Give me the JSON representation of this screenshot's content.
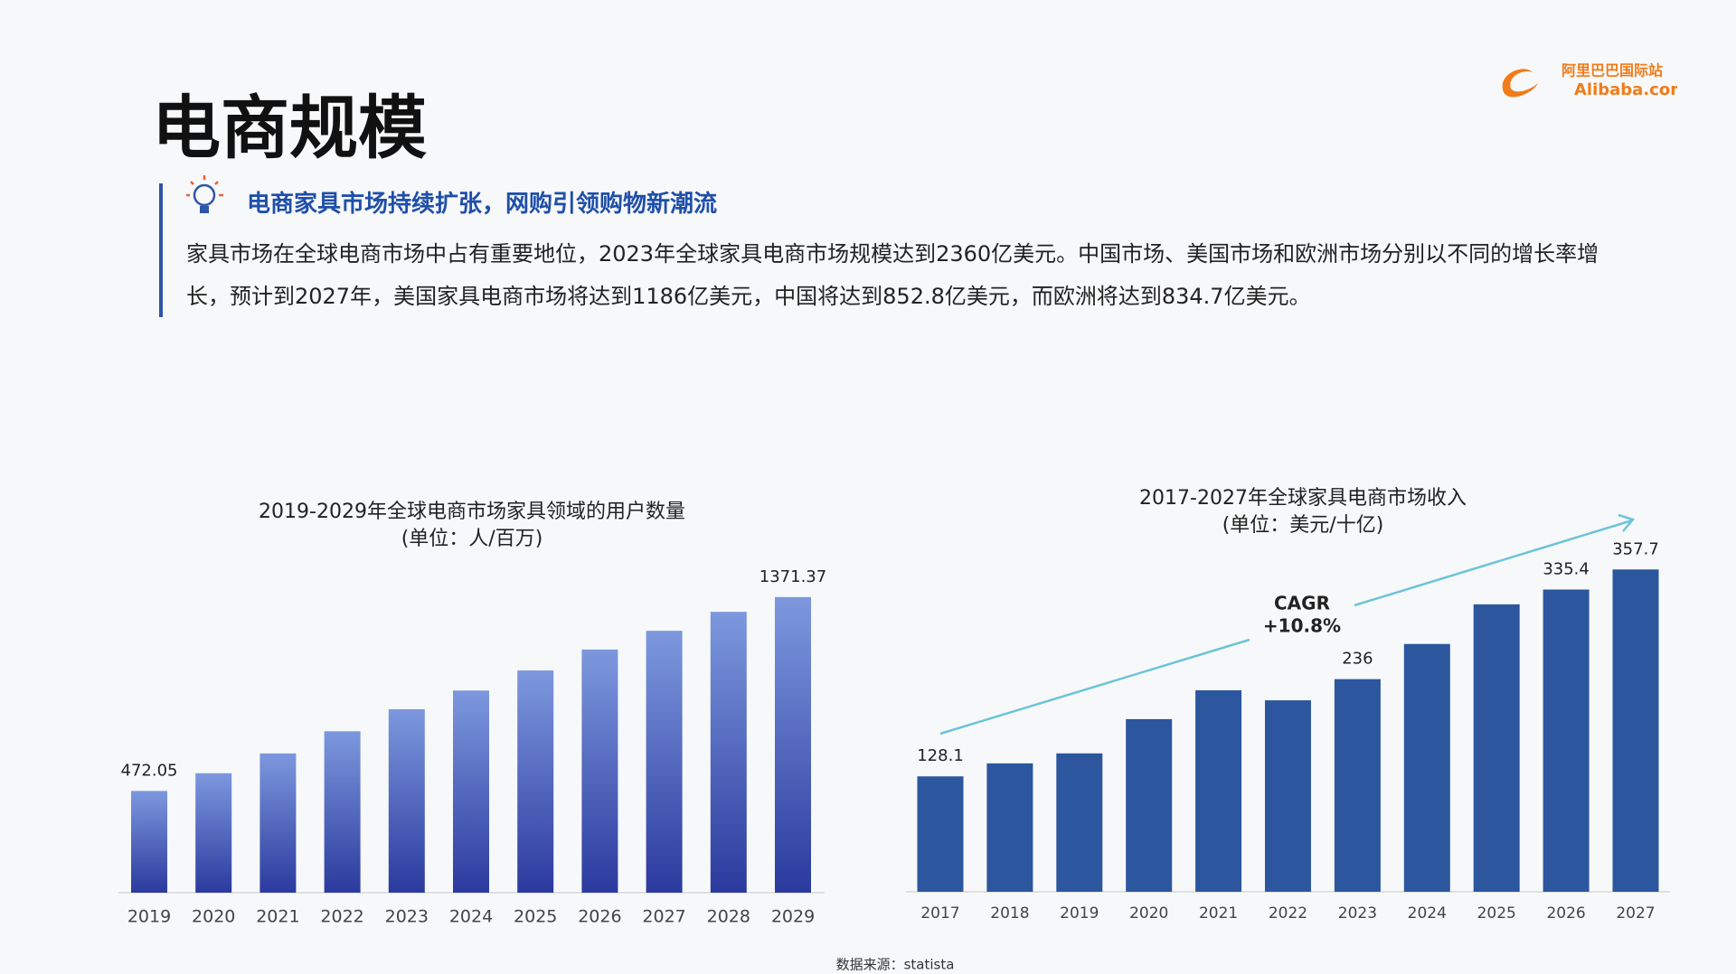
{
  "header": {
    "title": "电商规模",
    "logo_cn": "阿里巴巴国际站",
    "logo_en": "Alibaba.com"
  },
  "section": {
    "heading": "电商家具市场持续扩张，网购引领购物新潮流",
    "body": "家具市场在全球电商市场中占有重要地位，2023年全球家具电商市场规模达到2360亿美元。中国市场、美国市场和欧洲市场分别以不同的增长率增长，预计到2027年，美国家具电商市场将达到1186亿美元，中国将达到852.8亿美元，而欧洲将达到834.7亿美元。"
  },
  "chart_data": [
    {
      "type": "bar",
      "title": "2019-2029年全球电商市场家具领域的用户数量",
      "subtitle": "(单位：人/百万)",
      "categories": [
        "2019",
        "2020",
        "2021",
        "2022",
        "2023",
        "2024",
        "2025",
        "2026",
        "2027",
        "2028",
        "2029"
      ],
      "values": [
        472.05,
        554,
        646,
        749,
        851,
        938,
        1031,
        1128,
        1215,
        1303,
        1371.37
      ],
      "value_labels": [
        "472.05",
        null,
        null,
        null,
        null,
        null,
        null,
        null,
        null,
        null,
        "1371.37"
      ],
      "color": "#2b3a9e",
      "ylim": [
        0,
        1400
      ]
    },
    {
      "type": "bar",
      "title": "2017-2027年全球家具电商市场收入",
      "subtitle": "(单位：美元/十亿)",
      "categories": [
        "2017",
        "2018",
        "2019",
        "2020",
        "2021",
        "2022",
        "2023",
        "2024",
        "2025",
        "2026",
        "2027"
      ],
      "values": [
        128.1,
        142.5,
        153.6,
        191.6,
        223.6,
        212.5,
        236,
        275,
        319,
        335.4,
        357.7
      ],
      "value_labels": [
        "128.1",
        null,
        null,
        null,
        null,
        null,
        "236",
        null,
        null,
        "335.4",
        "357.7"
      ],
      "color": "#2c579e",
      "ylim": [
        0,
        370
      ],
      "annotation": {
        "line1": "CAGR",
        "line2": "+10.8%"
      }
    }
  ],
  "footer": {
    "source": "数据来源：statista"
  }
}
